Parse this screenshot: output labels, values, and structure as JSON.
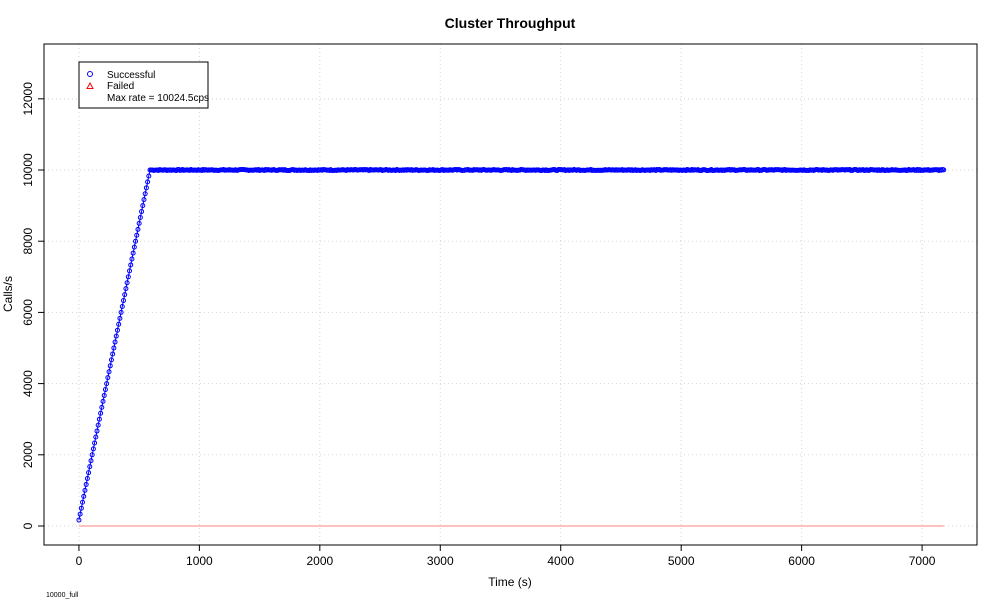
{
  "chart_data": {
    "type": "scatter",
    "title": "Cluster Throughput",
    "xlabel": "Time (s)",
    "ylabel": "Calls/s",
    "footnote": "10000_full",
    "xlim": [
      -290,
      7456
    ],
    "ylim": [
      -534,
      13540
    ],
    "x_ticks": [
      0,
      1000,
      2000,
      3000,
      4000,
      5000,
      6000,
      7000
    ],
    "y_ticks": [
      0,
      2000,
      4000,
      6000,
      8000,
      10000,
      12000
    ],
    "grid": true,
    "legend": {
      "position": "top-left",
      "entries": [
        {
          "label": "Successful",
          "marker": "circle",
          "color": "#0000ff"
        },
        {
          "label": "Failed",
          "marker": "triangle",
          "color": "#ff0000"
        }
      ],
      "note": "Max rate = 10024.5cps"
    },
    "series": [
      {
        "name": "Successful",
        "color": "#0000ff",
        "ramp": {
          "x": [
            0,
            10,
            20,
            30,
            40,
            50,
            60,
            70,
            80,
            90,
            100,
            110,
            120,
            130,
            140,
            150,
            160,
            170,
            180,
            190,
            200,
            210,
            220,
            230,
            240,
            250,
            260,
            270,
            280,
            290,
            300,
            310,
            320,
            330,
            340,
            350,
            360,
            370,
            380,
            390,
            400,
            410,
            420,
            430,
            440,
            450,
            460,
            470,
            480,
            490,
            500,
            510,
            520,
            530,
            540,
            550,
            560,
            570,
            580,
            590
          ],
          "y": [
            167,
            333,
            500,
            667,
            833,
            1000,
            1167,
            1333,
            1500,
            1667,
            1833,
            2000,
            2167,
            2333,
            2500,
            2667,
            2833,
            3000,
            3167,
            3333,
            3500,
            3667,
            3833,
            4000,
            4167,
            4333,
            4500,
            4667,
            4833,
            5000,
            5167,
            5333,
            5500,
            5667,
            5833,
            6000,
            6167,
            6333,
            6500,
            6667,
            6833,
            7000,
            7167,
            7333,
            7500,
            7667,
            7833,
            8000,
            8167,
            8333,
            8500,
            8667,
            8833,
            9000,
            9167,
            9333,
            9500,
            9667,
            9833,
            10000
          ]
        },
        "plateau": {
          "x_from": 600,
          "x_to": 7180,
          "x_step": 10,
          "y": 10000,
          "max": 10024.5
        }
      },
      {
        "name": "Failed",
        "color": "#ff0000",
        "x": [
          0,
          7180
        ],
        "y": [
          0,
          0
        ]
      }
    ]
  }
}
